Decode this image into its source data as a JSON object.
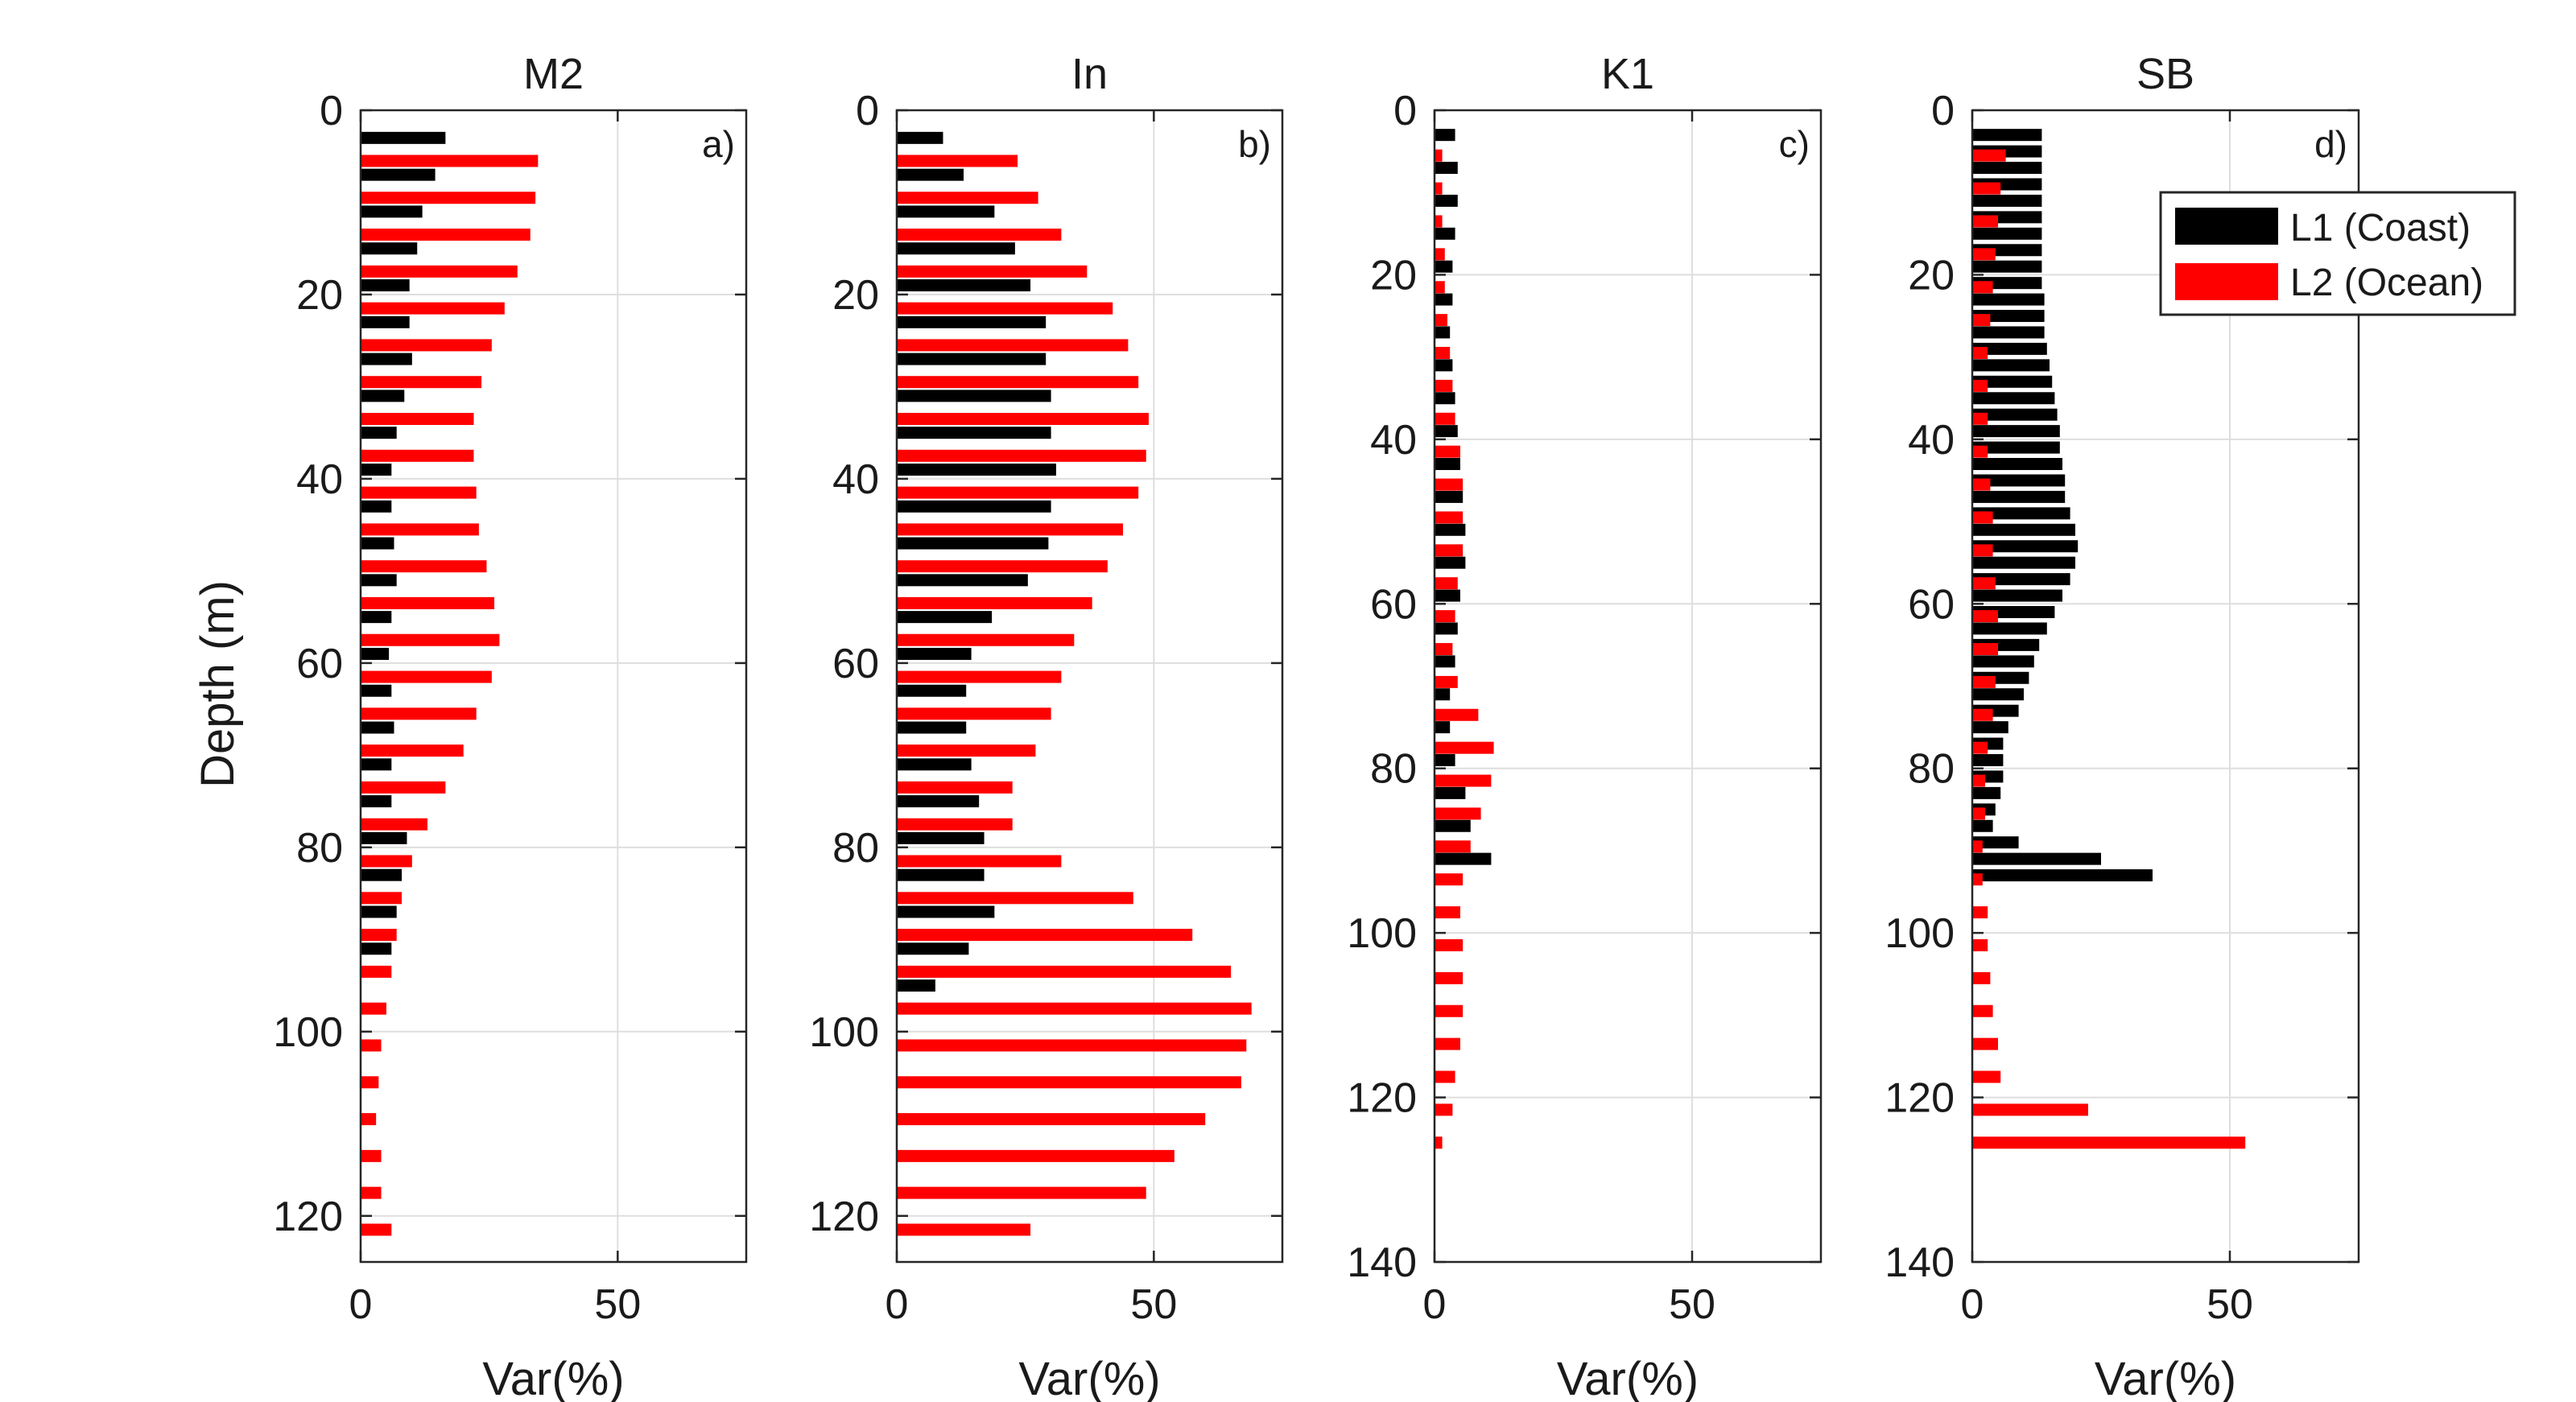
{
  "figure": {
    "ylabel": "Depth (m)",
    "legend": {
      "placement": "top-right of panel d",
      "entries": [
        {
          "label": "L1 (Coast)",
          "color": "#000000"
        },
        {
          "label": "L2 (Ocean)",
          "color": "#ff0000"
        }
      ]
    }
  },
  "chart_data": [
    {
      "type": "bar",
      "orientation": "horizontal",
      "title": "M2",
      "panel_label": "a)",
      "xlabel": "Var(%)",
      "ylabel": "Depth (m)",
      "xlim": [
        0,
        75
      ],
      "ylim": [
        0,
        125
      ],
      "y_reversed": true,
      "xticks": [
        0,
        50
      ],
      "yticks": [
        0,
        20,
        40,
        60,
        80,
        100,
        120
      ],
      "grid": true,
      "series": [
        {
          "name": "L1 (Coast)",
          "color": "#000000",
          "depth": [
            3,
            7,
            11,
            15,
            19,
            23,
            27,
            31,
            35,
            39,
            43,
            47,
            51,
            55,
            59,
            63,
            67,
            71,
            75,
            79,
            83,
            87,
            91
          ],
          "values": [
            16.5,
            14.5,
            12,
            11,
            9.5,
            9.5,
            10,
            8.5,
            7,
            6,
            6,
            6.5,
            7,
            6,
            5.5,
            6,
            6.5,
            6,
            6,
            9,
            8,
            7,
            6
          ]
        },
        {
          "name": "L2 (Ocean)",
          "color": "#ff0000",
          "depth": [
            5.5,
            9.5,
            13.5,
            17.5,
            21.5,
            25.5,
            29.5,
            33.5,
            37.5,
            41.5,
            45.5,
            49.5,
            53.5,
            57.5,
            61.5,
            65.5,
            69.5,
            73.5,
            77.5,
            81.5,
            85.5,
            89.5,
            93.5,
            97.5,
            101.5,
            105.5,
            109.5,
            113.5,
            117.5,
            121.5
          ],
          "values": [
            34.5,
            34,
            33,
            30.5,
            28,
            25.5,
            23.5,
            22,
            22,
            22.5,
            23,
            24.5,
            26,
            27,
            25.5,
            22.5,
            20,
            16.5,
            13,
            10,
            8,
            7,
            6,
            5,
            4,
            3.5,
            3,
            4,
            4,
            6
          ]
        }
      ]
    },
    {
      "type": "bar",
      "orientation": "horizontal",
      "title": "In",
      "panel_label": "b)",
      "xlabel": "Var(%)",
      "xlim": [
        0,
        75
      ],
      "ylim": [
        0,
        125
      ],
      "y_reversed": true,
      "xticks": [
        0,
        50
      ],
      "yticks": [
        0,
        20,
        40,
        60,
        80,
        100,
        120
      ],
      "grid": true,
      "series": [
        {
          "name": "L1 (Coast)",
          "color": "#000000",
          "depth": [
            3,
            7,
            11,
            15,
            19,
            23,
            27,
            31,
            35,
            39,
            43,
            47,
            51,
            55,
            59,
            63,
            67,
            71,
            75,
            79,
            83,
            87,
            91,
            95
          ],
          "values": [
            9,
            13,
            19,
            23,
            26,
            29,
            29,
            30,
            30,
            31,
            30,
            29.5,
            25.5,
            18.5,
            14.5,
            13.5,
            13.5,
            14.5,
            16,
            17,
            17,
            19,
            14,
            7.5
          ]
        },
        {
          "name": "L2 (Ocean)",
          "color": "#ff0000",
          "depth": [
            5.5,
            9.5,
            13.5,
            17.5,
            21.5,
            25.5,
            29.5,
            33.5,
            37.5,
            41.5,
            45.5,
            49.5,
            53.5,
            57.5,
            61.5,
            65.5,
            69.5,
            73.5,
            77.5,
            81.5,
            85.5,
            89.5,
            93.5,
            97.5,
            101.5,
            105.5,
            109.5,
            113.5,
            117.5,
            121.5
          ],
          "values": [
            23.5,
            27.5,
            32,
            37,
            42,
            45,
            47,
            49,
            48.5,
            47,
            44,
            41,
            38,
            34.5,
            32,
            30,
            27,
            22.5,
            22.5,
            32,
            46,
            57.5,
            65,
            69,
            68,
            67,
            60,
            54,
            48.5,
            26
          ]
        }
      ]
    },
    {
      "type": "bar",
      "orientation": "horizontal",
      "title": "K1",
      "panel_label": "c)",
      "xlabel": "Var(%)",
      "xlim": [
        0,
        75
      ],
      "ylim": [
        0,
        140
      ],
      "y_reversed": true,
      "xticks": [
        0,
        50
      ],
      "yticks": [
        0,
        20,
        40,
        60,
        80,
        100,
        120,
        140
      ],
      "grid": true,
      "series": [
        {
          "name": "L1 (Coast)",
          "color": "#000000",
          "depth": [
            3,
            7,
            11,
            15,
            19,
            23,
            27,
            31,
            35,
            39,
            43,
            47,
            51,
            55,
            59,
            63,
            67,
            71,
            75,
            79,
            83,
            87,
            91
          ],
          "values": [
            4,
            4.5,
            4.5,
            4,
            3.5,
            3.5,
            3,
            3.5,
            4,
            4.5,
            5,
            5.5,
            6,
            6,
            5,
            4.5,
            4,
            3,
            3,
            4,
            6,
            7,
            11
          ]
        },
        {
          "name": "L2 (Ocean)",
          "color": "#ff0000",
          "depth": [
            5.5,
            9.5,
            13.5,
            17.5,
            21.5,
            25.5,
            29.5,
            33.5,
            37.5,
            41.5,
            45.5,
            49.5,
            53.5,
            57.5,
            61.5,
            65.5,
            69.5,
            73.5,
            77.5,
            81.5,
            85.5,
            89.5,
            93.5,
            97.5,
            101.5,
            105.5,
            109.5,
            113.5,
            117.5,
            121.5,
            125.5
          ],
          "values": [
            1.5,
            1.5,
            1.5,
            2,
            2,
            2.5,
            3,
            3.5,
            4,
            5,
            5.5,
            5.5,
            5.5,
            4.5,
            4,
            3.5,
            4.5,
            8.5,
            11.5,
            11,
            9,
            7,
            5.5,
            5,
            5.5,
            5.5,
            5.5,
            5,
            4,
            3.5,
            1.5
          ]
        }
      ]
    },
    {
      "type": "bar",
      "orientation": "horizontal",
      "title": "SB",
      "panel_label": "d)",
      "xlabel": "Var(%)",
      "xlim": [
        0,
        75
      ],
      "ylim": [
        0,
        140
      ],
      "y_reversed": true,
      "xticks": [
        0,
        50
      ],
      "yticks": [
        0,
        20,
        40,
        60,
        80,
        100,
        120,
        140
      ],
      "grid": true,
      "series": [
        {
          "name": "L1 (Coast)",
          "color": "#000000",
          "depth": [
            3,
            5,
            7,
            9,
            11,
            13,
            15,
            17,
            19,
            21,
            23,
            25,
            27,
            29,
            31,
            33,
            35,
            37,
            39,
            41,
            43,
            45,
            47,
            49,
            51,
            53,
            55,
            57,
            59,
            61,
            63,
            65,
            67,
            69,
            71,
            73,
            75,
            77,
            79,
            81,
            83,
            85,
            87,
            89,
            91,
            93
          ],
          "values": [
            13.5,
            13.5,
            13.5,
            13.5,
            13.5,
            13.5,
            13.5,
            13.5,
            13.5,
            13.5,
            14,
            14,
            14,
            14.5,
            15,
            15.5,
            16,
            16.5,
            17,
            17,
            17.5,
            18,
            18,
            19,
            20,
            20.5,
            20,
            19,
            17.5,
            16,
            14.5,
            13,
            12,
            11,
            10,
            9,
            7,
            6,
            6,
            6,
            5.5,
            4.5,
            4,
            9,
            25,
            35
          ]
        },
        {
          "name": "L2 (Ocean)",
          "color": "#ff0000",
          "depth": [
            5.5,
            9.5,
            13.5,
            17.5,
            21.5,
            25.5,
            29.5,
            33.5,
            37.5,
            41.5,
            45.5,
            49.5,
            53.5,
            57.5,
            61.5,
            65.5,
            69.5,
            73.5,
            77.5,
            81.5,
            85.5,
            89.5,
            93.5,
            97.5,
            101.5,
            105.5,
            109.5,
            113.5,
            117.5,
            121.5,
            125.5
          ],
          "values": [
            6.5,
            5.5,
            5,
            4.5,
            4,
            3.5,
            3,
            3,
            3,
            3,
            3.5,
            4,
            4,
            4.5,
            5,
            5,
            4.5,
            4,
            3,
            2.5,
            2.5,
            2,
            2,
            3,
            3,
            3.5,
            4,
            5,
            5.5,
            22.5,
            53
          ]
        }
      ]
    }
  ]
}
